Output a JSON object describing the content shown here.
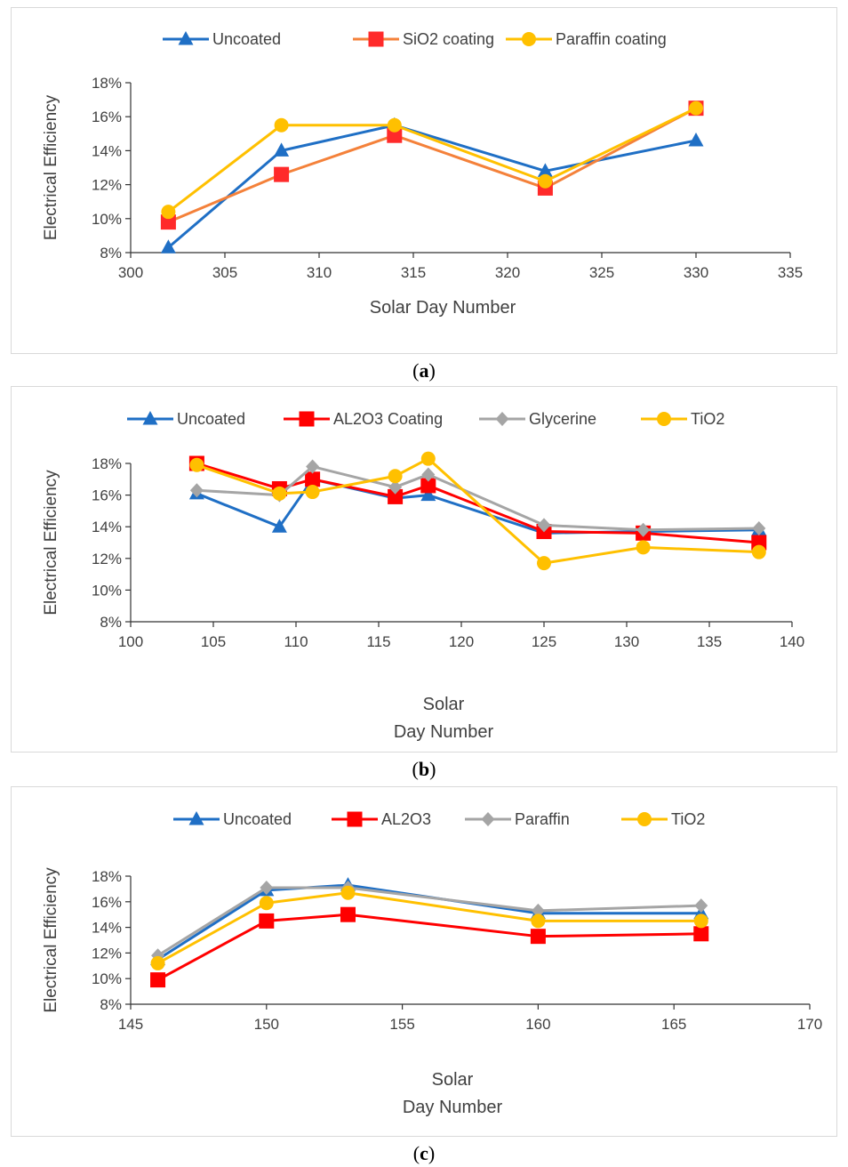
{
  "chart_data": [
    {
      "type": "line",
      "panel": "a",
      "xlabel": "Solar Day Number",
      "xlabel_lines": [
        "Solar Day Number"
      ],
      "ylabel": "Electrical Efficiency",
      "xlim": [
        300,
        335
      ],
      "xticks": [
        300,
        305,
        310,
        315,
        320,
        325,
        330,
        335
      ],
      "ylim": [
        8,
        18
      ],
      "yticks": [
        8,
        10,
        12,
        14,
        16,
        18
      ],
      "y_unit": "%",
      "legend": "top",
      "series": [
        {
          "name": "Uncoated",
          "color": "#1f6fc5",
          "marker": "triangle",
          "x": [
            302,
            308,
            314,
            322,
            330
          ],
          "values": [
            8.3,
            14.0,
            15.5,
            12.8,
            14.6
          ]
        },
        {
          "name": "SiO2 coating",
          "color": "#ff2a2a",
          "line_color": "#f4813a",
          "marker": "square",
          "x": [
            302,
            308,
            314,
            322,
            330
          ],
          "values": [
            9.8,
            12.6,
            14.9,
            11.8,
            16.5
          ]
        },
        {
          "name": "Paraffin coating",
          "color": "#ffc000",
          "marker": "circle",
          "x": [
            302,
            308,
            314,
            322,
            330
          ],
          "values": [
            10.4,
            15.5,
            15.5,
            12.2,
            16.5
          ]
        }
      ],
      "caption": "a"
    },
    {
      "type": "line",
      "panel": "b",
      "xlabel": "Solar Day Number",
      "xlabel_lines": [
        "Solar",
        "Day Number"
      ],
      "ylabel": "Electrical Efficiency",
      "xlim": [
        100,
        140
      ],
      "xticks": [
        100,
        105,
        110,
        115,
        120,
        125,
        130,
        135,
        140
      ],
      "ylim": [
        8,
        18
      ],
      "yticks": [
        8,
        10,
        12,
        14,
        16,
        18
      ],
      "y_unit": "%",
      "legend": "top",
      "series": [
        {
          "name": "Uncoated",
          "color": "#1f6fc5",
          "marker": "triangle",
          "x": [
            104,
            109,
            111,
            116,
            118,
            125,
            131,
            138
          ],
          "values": [
            16.1,
            14.0,
            17.0,
            15.8,
            16.0,
            13.6,
            13.7,
            13.8
          ]
        },
        {
          "name": "AL2O3 Coating",
          "color": "#ff0000",
          "marker": "square",
          "x": [
            104,
            109,
            111,
            116,
            118,
            125,
            131,
            138
          ],
          "values": [
            18.0,
            16.4,
            17.0,
            15.9,
            16.6,
            13.7,
            13.6,
            13.0
          ]
        },
        {
          "name": "Glycerine",
          "color": "#a5a5a5",
          "marker": "diamond",
          "x": [
            104,
            109,
            111,
            116,
            118,
            125,
            131,
            138
          ],
          "values": [
            16.3,
            16.0,
            17.8,
            16.5,
            17.3,
            14.1,
            13.8,
            13.9
          ]
        },
        {
          "name": "TiO2",
          "color": "#ffc000",
          "marker": "circle",
          "x": [
            104,
            109,
            111,
            116,
            118,
            125,
            131,
            138
          ],
          "values": [
            17.9,
            16.1,
            16.2,
            17.2,
            18.3,
            11.7,
            12.7,
            12.4
          ]
        }
      ],
      "caption": "b"
    },
    {
      "type": "line",
      "panel": "c",
      "xlabel": "Solar Day Number",
      "xlabel_lines": [
        "Solar",
        "Day Number"
      ],
      "ylabel": "Electrical Efficiency",
      "xlim": [
        145,
        170
      ],
      "xticks": [
        145,
        150,
        155,
        160,
        165,
        170
      ],
      "ylim": [
        8,
        18
      ],
      "yticks": [
        8,
        10,
        12,
        14,
        16,
        18
      ],
      "y_unit": "%",
      "legend": "top",
      "series": [
        {
          "name": "Uncoated",
          "color": "#1f6fc5",
          "marker": "triangle",
          "x": [
            146,
            150,
            153,
            160,
            166
          ],
          "values": [
            11.5,
            16.9,
            17.3,
            15.1,
            15.1
          ]
        },
        {
          "name": "AL2O3",
          "color": "#ff0000",
          "marker": "square",
          "x": [
            146,
            150,
            153,
            160,
            166
          ],
          "values": [
            9.9,
            14.5,
            15.0,
            13.3,
            13.5
          ]
        },
        {
          "name": "Paraffin",
          "color": "#a5a5a5",
          "marker": "diamond",
          "x": [
            146,
            150,
            153,
            160,
            166
          ],
          "values": [
            11.8,
            17.1,
            17.1,
            15.3,
            15.7
          ]
        },
        {
          "name": "TiO2",
          "color": "#ffc000",
          "marker": "circle",
          "x": [
            146,
            150,
            153,
            160,
            166
          ],
          "values": [
            11.2,
            15.9,
            16.7,
            14.5,
            14.5
          ]
        }
      ],
      "caption": "c"
    }
  ]
}
